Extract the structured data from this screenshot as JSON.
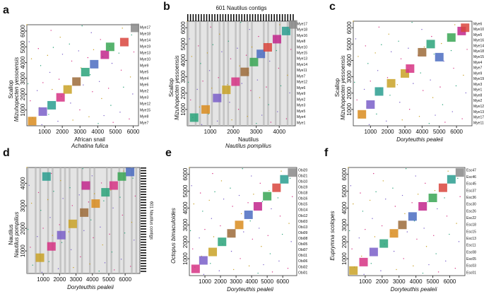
{
  "chart_data": [
    {
      "type": "scatter",
      "panel": "a",
      "xlabel": [
        "African snail",
        "Achatina fulica"
      ],
      "ylabel": [
        "Scallop",
        "Mizuhopecten yessoensis"
      ],
      "xlim": [
        0,
        6300
      ],
      "xticks": [
        1000,
        2000,
        3000,
        4000,
        5000,
        6000
      ],
      "ylim": [
        0,
        6400
      ],
      "yticks": [
        1000,
        2000,
        3000,
        4000,
        5000,
        6000
      ],
      "right_labels": [
        "Mye17",
        "Mye18",
        "Mye14",
        "Mye19",
        "Mye13",
        "Mye10",
        "Mye9",
        "Mye5",
        "Mye4",
        "Mye6",
        "Mye2",
        "Mye3",
        "Mye12",
        "Mye15",
        "Mye8",
        "Mye7"
      ],
      "x": [
        300,
        900,
        1400,
        1900,
        2300,
        2800,
        3300,
        3800,
        4400,
        4700,
        5500,
        6100
      ],
      "y": [
        300,
        900,
        1300,
        1800,
        2300,
        2800,
        3400,
        3900,
        4500,
        5000,
        5300,
        6200
      ],
      "colors": [
        "#d98c1f",
        "#7a5fc9",
        "#2a9d8f",
        "#d63384",
        "#c9a227",
        "#9c6b3a",
        "#2aa37a",
        "#4b6cc1",
        "#c2268c",
        "#3aa655",
        "#d9453d",
        "#888888"
      ]
    },
    {
      "type": "scatter",
      "panel": "b",
      "title": "601 Nautilus contigs",
      "xlabel": [
        "Nautilus",
        "Nautilus pompilius"
      ],
      "ylabel": [
        "Scallop",
        "Mizuhopecten yessoensis"
      ],
      "xlim": [
        0,
        4700
      ],
      "xticks": [
        1000,
        2000,
        3000,
        4000
      ],
      "ylim": [
        0,
        6400
      ],
      "yticks": [
        1000,
        2000,
        3000,
        4000,
        5000,
        6000
      ],
      "right_labels": [
        "Mye17",
        "Mye18",
        "Mye16",
        "Mye8",
        "Mye10",
        "Mye15",
        "Mye13",
        "Mye14",
        "Mye11",
        "Mye7",
        "Mye12",
        "Mye6",
        "Mye9",
        "Mye2",
        "Mye3",
        "Mye5",
        "Mye4",
        "Mye1"
      ],
      "x": [
        300,
        800,
        1300,
        1700,
        2100,
        2500,
        2900,
        3200,
        3500,
        3900,
        4300,
        4600
      ],
      "y": [
        500,
        1000,
        1700,
        2200,
        2700,
        3300,
        3900,
        4400,
        4800,
        5300,
        5800,
        6200
      ],
      "colors": [
        "#2aa37a",
        "#d98c1f",
        "#7a5fc9",
        "#c9a227",
        "#d63384",
        "#9c6b3a",
        "#3aa655",
        "#4b6cc1",
        "#d9453d",
        "#c2268c",
        "#2a9d8f",
        "#888888"
      ]
    },
    {
      "type": "scatter",
      "panel": "c",
      "xlabel": [
        "Doryteuthis pealeii"
      ],
      "ylabel": [
        "Scallop",
        "Mizuhopecten yessoensis"
      ],
      "xlim": [
        0,
        6900
      ],
      "xticks": [
        1000,
        2000,
        3000,
        4000,
        5000,
        6000
      ],
      "ylim": [
        0,
        6400
      ],
      "yticks": [
        1000,
        2000,
        3000,
        4000,
        5000,
        6000
      ],
      "right_labels": [
        "Mye6",
        "Mye10",
        "Mye5",
        "Mye16",
        "Mye14",
        "Mye18",
        "Mye15",
        "Mye4",
        "Mye7",
        "Mye9",
        "Mye19",
        "Mye3",
        "Mye1",
        "Mye8",
        "Mye2",
        "Mye12",
        "Mye13",
        "Mye17",
        "Mye11"
      ],
      "x": [
        500,
        1000,
        1500,
        2200,
        3000,
        3300,
        4000,
        4500,
        5000,
        5700,
        6300,
        6500
      ],
      "y": [
        700,
        1300,
        2100,
        2600,
        3200,
        3500,
        4500,
        5000,
        4200,
        5400,
        5800,
        6000
      ],
      "colors": [
        "#d98c1f",
        "#7a5fc9",
        "#2a9d8f",
        "#c9a227",
        "#c9a227",
        "#d63384",
        "#9c6b3a",
        "#2aa37a",
        "#4b6cc1",
        "#3aa655",
        "#c2268c",
        "#d9453d"
      ]
    },
    {
      "type": "scatter",
      "panel": "d",
      "right_title": "601 Nautilus contigs",
      "xlabel": [
        "Doryteuthis pealeii"
      ],
      "ylabel": [
        "Nautilus",
        "Nautilus pompilius"
      ],
      "xlim": [
        0,
        6900
      ],
      "xticks": [
        1000,
        2000,
        3000,
        4000,
        5000,
        6000
      ],
      "ylim": [
        0,
        4700
      ],
      "yticks": [
        1000,
        2000,
        3000,
        4000
      ],
      "x": [
        800,
        1500,
        2100,
        2800,
        3500,
        4200,
        4800,
        5300,
        5800,
        6300,
        1200,
        3600
      ],
      "y": [
        700,
        1200,
        1700,
        2200,
        2700,
        3100,
        3600,
        3900,
        4300,
        4500,
        4300,
        3900
      ],
      "colors": [
        "#c9a227",
        "#d63384",
        "#7a5fc9",
        "#c9a227",
        "#9c6b3a",
        "#d98c1f",
        "#2aa37a",
        "#d63384",
        "#3aa655",
        "#4b6cc1",
        "#2a9d8f",
        "#c2268c"
      ]
    },
    {
      "type": "scatter",
      "panel": "e",
      "xlabel": [
        "Doryteuthis pealeii"
      ],
      "ylabel": [
        "Octopus bimaculoides"
      ],
      "xlim": [
        0,
        6900
      ],
      "xticks": [
        1000,
        2000,
        3000,
        4000,
        5000,
        6000
      ],
      "ylim": [
        0,
        6400
      ],
      "yticks": [
        1000,
        2000,
        3000,
        4000,
        5000,
        6000
      ],
      "right_labels": [
        "Obi20",
        "Obi21",
        "Obi10",
        "Obi19",
        "Obi18",
        "Obi16",
        "Obi15",
        "Obi14",
        "Obi12",
        "Obi03",
        "Obi13",
        "Obi09",
        "Obi08",
        "Obi05",
        "Obi07",
        "Obi11",
        "Obi06",
        "Obi02",
        "Obi01"
      ],
      "x": [
        400,
        900,
        1500,
        2100,
        2700,
        3200,
        3800,
        4400,
        5000,
        5600,
        6100,
        6600
      ],
      "y": [
        400,
        900,
        1400,
        2000,
        2500,
        3000,
        3600,
        4100,
        4700,
        5200,
        5700,
        6100
      ],
      "colors": [
        "#d63384",
        "#7a5fc9",
        "#c9a227",
        "#2aa37a",
        "#9c6b3a",
        "#d98c1f",
        "#4b6cc1",
        "#c2268c",
        "#3aa655",
        "#d9453d",
        "#2a9d8f",
        "#888888"
      ]
    },
    {
      "type": "scatter",
      "panel": "f",
      "xlabel": [
        "Doryteuthis pealeii"
      ],
      "ylabel": [
        "Euprymna scolopes"
      ],
      "xlim": [
        0,
        6900
      ],
      "xticks": [
        1000,
        2000,
        3000,
        4000,
        5000,
        6000
      ],
      "ylim": [
        0,
        6400
      ],
      "yticks": [
        1000,
        2000,
        3000,
        4000,
        5000,
        6000
      ],
      "right_labels": [
        "Esc47",
        "Esc46",
        "Esc45",
        "Esc37",
        "Esc36",
        "Esc30",
        "Esc26",
        "Esc22",
        "Esc18",
        "Esc15",
        "Esc13",
        "Esc11",
        "Esc08",
        "Esc05",
        "Esc03",
        "Esc01"
      ],
      "x": [
        300,
        900,
        1500,
        2100,
        2700,
        3200,
        3800,
        4400,
        5000,
        5600,
        6100,
        6600
      ],
      "y": [
        300,
        800,
        1400,
        1900,
        2500,
        3000,
        3500,
        4100,
        4600,
        5200,
        5700,
        6100
      ],
      "colors": [
        "#c9a227",
        "#d63384",
        "#7a5fc9",
        "#2aa37a",
        "#d98c1f",
        "#9c6b3a",
        "#4b6cc1",
        "#c2268c",
        "#3aa655",
        "#d9453d",
        "#2a9d8f",
        "#888888"
      ]
    }
  ]
}
